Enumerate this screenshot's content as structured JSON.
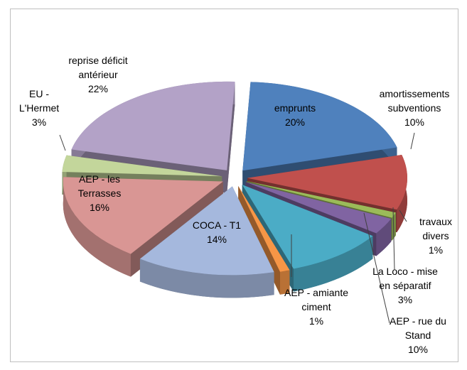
{
  "chart_data": {
    "type": "pie",
    "categories": [
      "emprunts",
      "amortissements subventions",
      "travaux divers",
      "La Loco - mise en séparatif",
      "AEP - rue du Stand",
      "AEP - amiante ciment",
      "COCA - T1",
      "AEP - les Terrasses",
      "EU - L'Hermet",
      "reprise déficit antérieur"
    ],
    "values": [
      20,
      10,
      1,
      3,
      10,
      1,
      14,
      16,
      3,
      22
    ],
    "value_labels": [
      "20%",
      "10%",
      "1%",
      "3%",
      "10%",
      "1%",
      "14%",
      "16%",
      "3%",
      "22%"
    ],
    "colors": [
      "#4f81bd",
      "#c0504d",
      "#9bbb59",
      "#8064a2",
      "#4bacc6",
      "#f79646",
      "#a5b8dd",
      "#d99694",
      "#c3d69b",
      "#b3a2c7"
    ]
  }
}
